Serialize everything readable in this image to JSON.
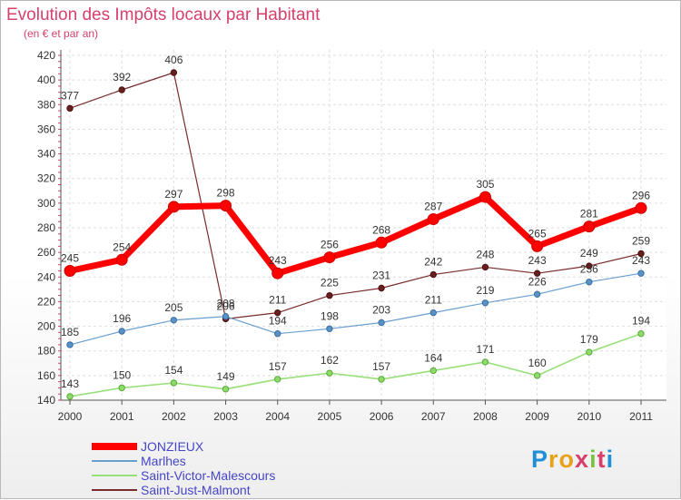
{
  "title": "Evolution des Impôts locaux par Habitant",
  "subtitle": "(en € et par an)",
  "logo": "Proxiti",
  "chart_data": {
    "type": "line",
    "x": [
      2000,
      2001,
      2002,
      2003,
      2004,
      2005,
      2006,
      2007,
      2008,
      2009,
      2010,
      2011
    ],
    "ylim": [
      140,
      420
    ],
    "yticks": [
      140,
      160,
      180,
      200,
      220,
      240,
      260,
      280,
      300,
      320,
      340,
      360,
      380,
      400,
      420
    ],
    "grid": true,
    "legend_position": "bottom-left",
    "series": [
      {
        "name": "JONZIEUX",
        "color": "#ff0000",
        "values": [
          245,
          254,
          297,
          298,
          243,
          256,
          268,
          287,
          305,
          265,
          281,
          296
        ]
      },
      {
        "name": "Marlhes",
        "color": "#6a9fd0",
        "values": [
          185,
          196,
          205,
          208,
          194,
          198,
          203,
          211,
          219,
          226,
          236,
          243
        ]
      },
      {
        "name": "Saint-Victor-Malescours",
        "color": "#99e07a",
        "values": [
          143,
          150,
          154,
          149,
          157,
          162,
          157,
          164,
          171,
          160,
          179,
          194
        ]
      },
      {
        "name": "Saint-Just-Malmont",
        "color": "#7a2b2b",
        "values": [
          377,
          392,
          406,
          206,
          211,
          225,
          231,
          242,
          248,
          243,
          249,
          259
        ]
      }
    ]
  }
}
